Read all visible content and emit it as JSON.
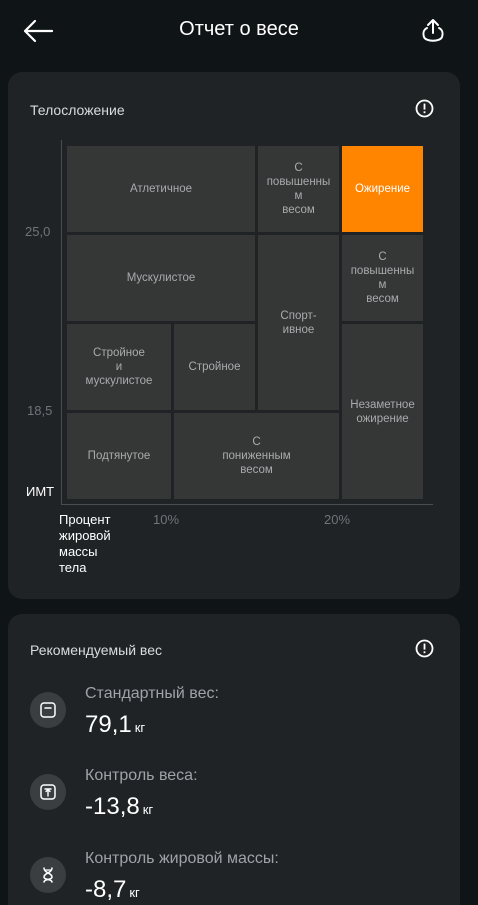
{
  "header": {
    "title": "Отчет о весе",
    "back_icon": "arrow-left-icon",
    "share_icon": "share-upload-icon"
  },
  "body_type": {
    "title": "Телосложение",
    "info_icon": "info-icon",
    "y_axis": {
      "title": "ИМТ",
      "ticks": [
        "25,0",
        "18,5"
      ]
    },
    "x_axis": {
      "title": "Процент жировой массы тела",
      "title_lines": [
        "Процент",
        "жировой",
        "массы",
        "тела"
      ],
      "ticks": [
        "10%",
        "20%"
      ]
    },
    "cells": {
      "athletic": [
        "Атлетичное"
      ],
      "overweight_top": [
        "С",
        "повышенны",
        "м",
        "весом"
      ],
      "obesity": [
        "Ожирение"
      ],
      "muscular": [
        "Мускулистое"
      ],
      "sporty": [
        "Спорт-",
        "ивное"
      ],
      "overweight_mid": [
        "С",
        "повышенны",
        "м",
        "весом"
      ],
      "slim_muscular": [
        "Стройное",
        "и",
        "мускулистое"
      ],
      "slim": [
        "Стройное"
      ],
      "hidden_obesity": [
        "Незаметное",
        "ожирение"
      ],
      "toned": [
        "Подтянутое"
      ],
      "underweight": [
        "С",
        "пониженным",
        "весом"
      ]
    },
    "highlighted": "Ожирение",
    "colors": {
      "cell": "#353636",
      "highlight": "#ff8400",
      "card": "#1f2326"
    }
  },
  "recommended": {
    "title": "Рекомендуемый вес",
    "info_icon": "info-icon",
    "items": [
      {
        "label": "Стандартный вес:",
        "value": "79,1",
        "unit": "кг",
        "icon": "scale-icon"
      },
      {
        "label": "Контроль веса:",
        "value": "-13,8",
        "unit": "кг",
        "icon": "scale-up-icon"
      },
      {
        "label": "Контроль жировой массы:",
        "value": "-8,7",
        "unit": "кг",
        "icon": "dna-icon"
      }
    ]
  }
}
